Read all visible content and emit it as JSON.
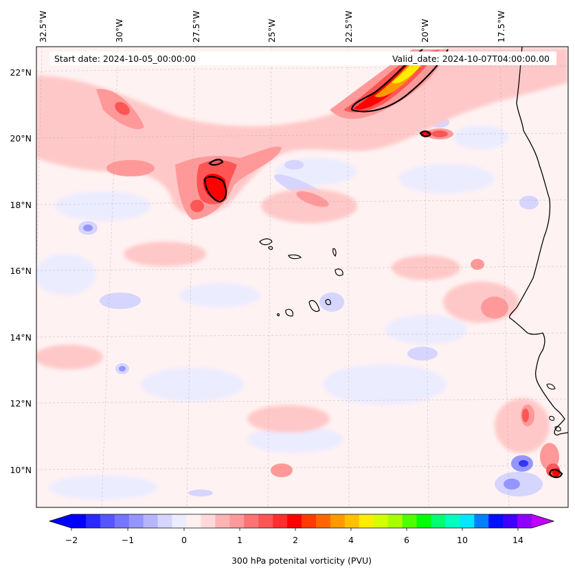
{
  "map": {
    "start_label": "Start date: 2024-10-05_00:00:00",
    "valid_label": "Valid_date: 2024-10-07T04:00:00.00",
    "lon_labels": [
      "32.5°W",
      "30°W",
      "27.5°W",
      "25°W",
      "22.5°W",
      "20°W",
      "17.5°W"
    ],
    "lat_labels": [
      "22°N",
      "20°N",
      "18°N",
      "16°N",
      "14°N",
      "12°N",
      "10°N"
    ],
    "extent": {
      "lon_min": -33.0,
      "lon_max": -15.3,
      "lat_min": 8.9,
      "lat_max": 22.8
    }
  },
  "colorbar": {
    "label": "300 hPa potenital vorticity (PVU)",
    "tick_labels": [
      "−2",
      "−1",
      "0",
      "1",
      "2",
      "4",
      "6",
      "10",
      "14"
    ],
    "extend": "both",
    "colors": [
      "#0000ff",
      "#2a2aff",
      "#5555ff",
      "#7575ff",
      "#9595ff",
      "#b5b5ff",
      "#d5d5ff",
      "#ececff",
      "#fff0f0",
      "#ffd9d9",
      "#ffb3b3",
      "#ff9999",
      "#ff7373",
      "#ff5555",
      "#ff2e2e",
      "#ff0000",
      "#ff3b00",
      "#ff6600",
      "#ff9900",
      "#ffc000",
      "#ffec00",
      "#d4ff00",
      "#a6ff00",
      "#50ff00",
      "#00ff00",
      "#00ff70",
      "#00ffc0",
      "#00e8ff",
      "#0080ff",
      "#0010ff",
      "#4000ff",
      "#9000ff"
    ],
    "under_color": "#0000ff",
    "over_color": "#c000ff"
  },
  "colors": {
    "background": "#ffefef",
    "light_blue": "#e6e6ff",
    "coast": "#000000"
  }
}
